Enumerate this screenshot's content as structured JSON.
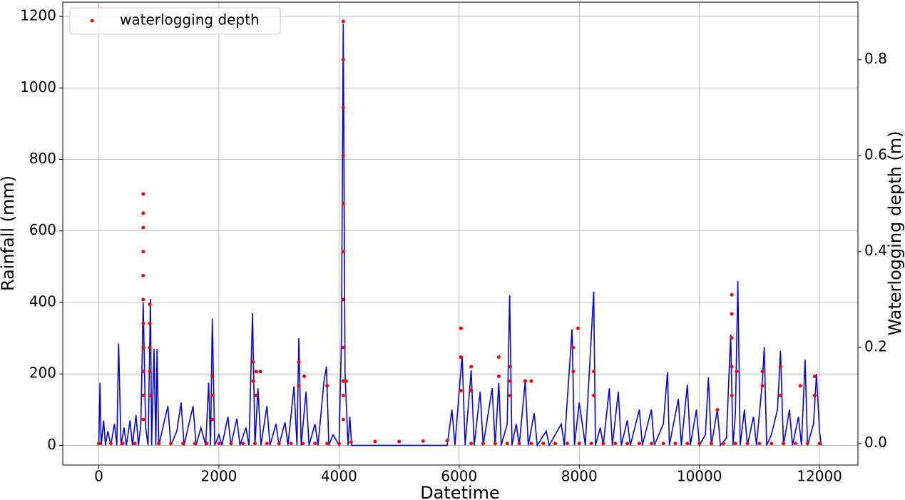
{
  "chart_data": {
    "type": "line-scatter",
    "xlabel": "Datetime",
    "ylabel": "Rainfall (mm)",
    "y2label": "Waterlogging depth (m)",
    "xlim": [
      -600,
      12640
    ],
    "ylim": [
      -55,
      1240
    ],
    "y2lim": [
      -0.045,
      0.92
    ],
    "xticks": [
      0,
      2000,
      4000,
      6000,
      8000,
      10000,
      12000
    ],
    "yticks": [
      0,
      200,
      400,
      600,
      800,
      1000,
      1200
    ],
    "y2ticks": [
      {
        "value": 0,
        "label": "0.0"
      },
      0.2,
      0.4,
      0.6,
      0.8
    ],
    "grid": true,
    "legend": "upper left",
    "series": [
      {
        "type": "line",
        "color": "#0000ff",
        "x": [
          0,
          20,
          40,
          80,
          110,
          150,
          200,
          260,
          300,
          330,
          370,
          420,
          460,
          520,
          560,
          620,
          660,
          700,
          740,
          780,
          820,
          860,
          880,
          920,
          950,
          970,
          1000,
          1080,
          1150,
          1200,
          1300,
          1370,
          1420,
          1500,
          1570,
          1620,
          1700,
          1780,
          1830,
          1860,
          1890,
          1930,
          2000,
          2050,
          2150,
          2200,
          2300,
          2350,
          2450,
          2500,
          2560,
          2600,
          2650,
          2700,
          2800,
          2850,
          2950,
          3000,
          3100,
          3150,
          3250,
          3300,
          3330,
          3370,
          3450,
          3500,
          3600,
          3650,
          3750,
          3790,
          3830,
          3900,
          4000,
          4040,
          4070,
          4100,
          4150,
          4180,
          4210,
          4300,
          5000,
          5800,
          5880,
          5930,
          6000,
          6050,
          6100,
          6200,
          6250,
          6350,
          6400,
          6550,
          6600,
          6660,
          6700,
          6800,
          6840,
          6880,
          6950,
          7000,
          7100,
          7150,
          7250,
          7300,
          7450,
          7500,
          7700,
          7750,
          7880,
          7920,
          8000,
          8100,
          8240,
          8270,
          8350,
          8400,
          8500,
          8550,
          8650,
          8700,
          8800,
          8850,
          9000,
          9050,
          9200,
          9250,
          9400,
          9470,
          9500,
          9650,
          9700,
          9800,
          9850,
          9950,
          10000,
          10100,
          10150,
          10200,
          10300,
          10350,
          10450,
          10520,
          10560,
          10600,
          10640,
          10680,
          10750,
          10800,
          10900,
          10950,
          11050,
          11080,
          11120,
          11200,
          11300,
          11350,
          11400,
          11500,
          11550,
          11650,
          11700,
          11760,
          11800,
          11900,
          11950,
          12000,
          12030
        ],
        "values": [
          0,
          175,
          0,
          70,
          0,
          40,
          0,
          60,
          0,
          285,
          0,
          50,
          0,
          70,
          0,
          85,
          0,
          60,
          400,
          50,
          0,
          410,
          0,
          270,
          0,
          270,
          0,
          60,
          110,
          0,
          40,
          120,
          0,
          60,
          110,
          0,
          50,
          0,
          175,
          0,
          355,
          0,
          30,
          0,
          80,
          0,
          75,
          0,
          50,
          0,
          370,
          0,
          160,
          0,
          110,
          0,
          60,
          0,
          65,
          0,
          165,
          0,
          300,
          0,
          150,
          0,
          60,
          0,
          180,
          220,
          0,
          30,
          0,
          300,
          1180,
          200,
          0,
          80,
          0,
          0,
          0,
          0,
          100,
          0,
          150,
          250,
          0,
          210,
          0,
          150,
          0,
          160,
          0,
          175,
          0,
          60,
          420,
          0,
          60,
          0,
          180,
          0,
          90,
          0,
          40,
          0,
          60,
          0,
          325,
          0,
          120,
          0,
          430,
          0,
          50,
          0,
          160,
          0,
          150,
          0,
          70,
          0,
          100,
          0,
          100,
          0,
          60,
          205,
          0,
          130,
          0,
          170,
          0,
          100,
          0,
          30,
          190,
          0,
          100,
          0,
          20,
          310,
          0,
          90,
          460,
          0,
          100,
          0,
          80,
          0,
          180,
          275,
          0,
          30,
          100,
          265,
          0,
          100,
          0,
          80,
          0,
          240,
          0,
          60,
          200,
          40,
          0
        ]
      },
      {
        "type": "scatter",
        "name": "waterlogging depth",
        "color": "#ff0000",
        "axis": "y2",
        "x": [
          0,
          200,
          400,
          600,
          1000,
          1200,
          1400,
          1600,
          1800,
          2000,
          2200,
          2400,
          2600,
          2800,
          3000,
          3200,
          3400,
          3600,
          3800,
          4000,
          4200,
          4600,
          5000,
          5400,
          5800,
          6200,
          6400,
          6600,
          6800,
          7000,
          7200,
          7400,
          7600,
          7800,
          8000,
          8200,
          8400,
          8600,
          8800,
          9000,
          9200,
          9400,
          9600,
          9800,
          10000,
          10200,
          10400,
          10600,
          10800,
          11000,
          11200,
          11400,
          11600,
          11800,
          12000,
          740,
          740,
          740,
          740,
          740,
          740,
          740,
          740,
          740,
          740,
          740,
          850,
          850,
          850,
          850,
          850,
          1890,
          1890,
          1890,
          2570,
          2570,
          2620,
          2620,
          2690,
          3330,
          3330,
          3420,
          3800,
          4070,
          4070,
          4070,
          4070,
          4070,
          4070,
          4070,
          4070,
          4070,
          4070,
          4070,
          4120,
          6030,
          6030,
          6030,
          6200,
          6200,
          6660,
          6660,
          6850,
          6850,
          6850,
          7100,
          7200,
          7900,
          7900,
          7980,
          8240,
          8240,
          10300,
          10540,
          10540,
          10540,
          10540,
          10540,
          10620,
          11050,
          11050,
          11350,
          11350,
          11680,
          11920,
          11920
        ],
        "values": [
          0,
          0,
          0,
          0,
          0,
          0,
          0,
          0,
          0,
          0,
          0,
          0,
          0,
          0,
          0,
          0,
          0,
          0,
          0,
          0,
          0.003,
          0.004,
          0.004,
          0.005,
          0.006,
          0,
          0,
          0,
          0,
          0,
          0,
          0,
          0,
          0,
          0,
          0,
          0,
          0,
          0,
          0,
          0,
          0,
          0,
          0,
          0,
          0,
          0,
          0,
          0,
          0,
          0,
          0,
          0,
          0,
          0,
          0.52,
          0.48,
          0.45,
          0.4,
          0.35,
          0.3,
          0.25,
          0.2,
          0.15,
          0.1,
          0.05,
          0.29,
          0.25,
          0.2,
          0.15,
          0.1,
          0.14,
          0.1,
          0.05,
          0.17,
          0.13,
          0.15,
          0.1,
          0.15,
          0.17,
          0.12,
          0.14,
          0.12,
          0.88,
          0.8,
          0.7,
          0.6,
          0.5,
          0.4,
          0.3,
          0.2,
          0.13,
          0.1,
          0.05,
          0.13,
          0.24,
          0.18,
          0.11,
          0.16,
          0.11,
          0.18,
          0.14,
          0.16,
          0.13,
          0.1,
          0.13,
          0.13,
          0.2,
          0.15,
          0.24,
          0.15,
          0.1,
          0.07,
          0.31,
          0.27,
          0.22,
          0.16,
          0.1,
          0.15,
          0.15,
          0.12,
          0.16,
          0.1,
          0.12,
          0.14,
          0.1
        ]
      }
    ]
  }
}
